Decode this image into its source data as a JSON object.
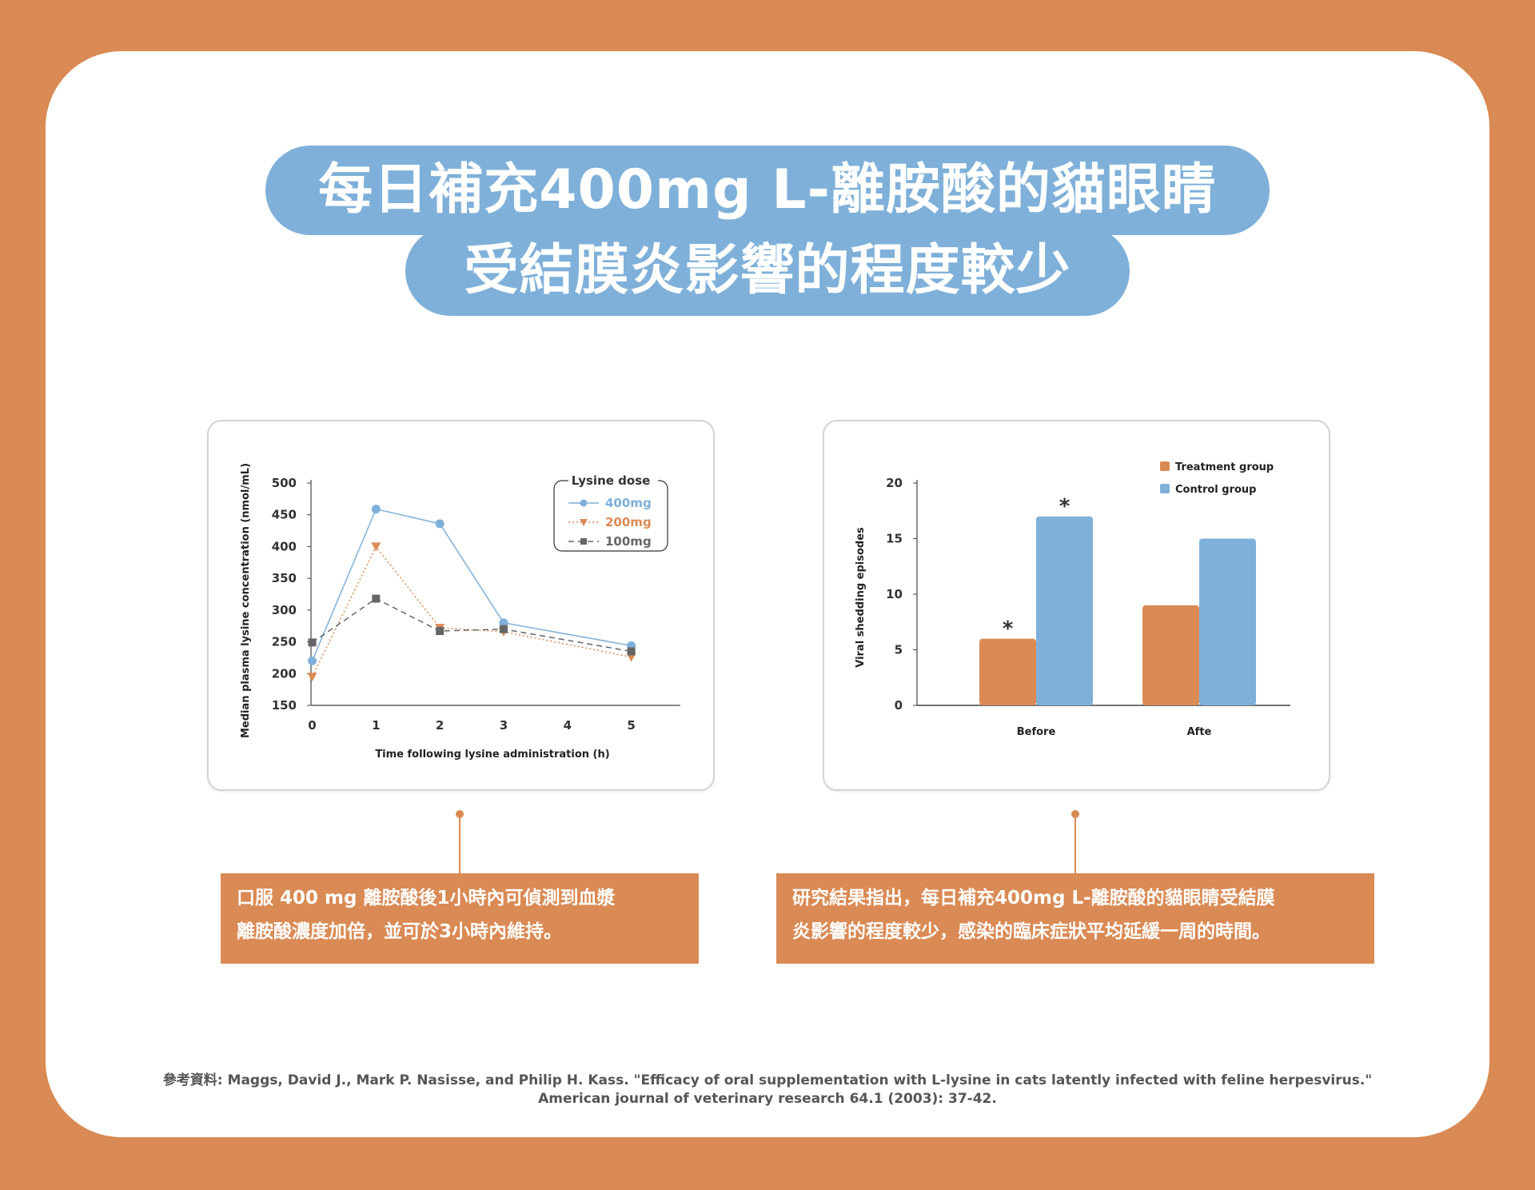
{
  "title": {
    "line1": "每日補充400mg L-離胺酸的貓眼睛",
    "line2": "受結膜炎影響的程度較少"
  },
  "colors": {
    "orange": "#DA8A54",
    "blue": "#7FB0D9",
    "gray": "#666666"
  },
  "chart_data": [
    {
      "type": "line",
      "xlabel": "Time following lysine administration (h)",
      "ylabel": "Median plasma lysine concentration (nmol/mL)",
      "ylim": [
        150,
        500
      ],
      "yticks": [
        150,
        200,
        250,
        300,
        350,
        400,
        450,
        500
      ],
      "xticks": [
        0,
        1,
        2,
        3,
        4,
        5
      ],
      "x": [
        0,
        1,
        2,
        3,
        5
      ],
      "legend_title": "Lysine dose",
      "legend_position": "top-right",
      "series": [
        {
          "name": "400mg",
          "values": [
            220,
            459,
            436,
            280,
            244
          ],
          "color": "#7FB0D9",
          "marker": "circle",
          "line": "solid"
        },
        {
          "name": "200mg",
          "values": [
            195,
            400,
            272,
            266,
            226
          ],
          "color": "#DA8A54",
          "marker": "triangle-down",
          "line": "dotted"
        },
        {
          "name": "100mg",
          "values": [
            249,
            318,
            267,
            270,
            235
          ],
          "color": "#666666",
          "marker": "square",
          "line": "dashed"
        }
      ]
    },
    {
      "type": "bar",
      "ylabel": "Viral shedding episodes",
      "ylim": [
        0,
        20
      ],
      "yticks": [
        0,
        5,
        10,
        15,
        20
      ],
      "categories": [
        "Before",
        "Afte"
      ],
      "legend_position": "top-right",
      "series": [
        {
          "name": "Treatment group",
          "values": [
            6,
            9
          ],
          "color": "#DA8A54",
          "annotations": [
            "*",
            ""
          ]
        },
        {
          "name": "Control group",
          "values": [
            17,
            15
          ],
          "color": "#7FB0D9",
          "annotations": [
            "*",
            ""
          ]
        }
      ]
    }
  ],
  "captions": {
    "left": {
      "line1": "口服 400 mg 離胺酸後1小時內可偵測到血漿",
      "line2": "離胺酸濃度加倍，並可於3小時內維持。"
    },
    "right": {
      "line1": "研究結果指出，每日補充400mg L-離胺酸的貓眼睛受結膜",
      "line2": "炎影響的程度較少，感染的臨床症狀平均延緩一周的時間。"
    }
  },
  "reference": {
    "line1": "參考資料: Maggs, David J., Mark P. Nasisse, and Philip H. Kass. \"Efficacy of oral supplementation with L-lysine in cats latently infected with feline herpesvirus.\"",
    "line2": "American journal of veterinary research 64.1 (2003): 37-42."
  }
}
